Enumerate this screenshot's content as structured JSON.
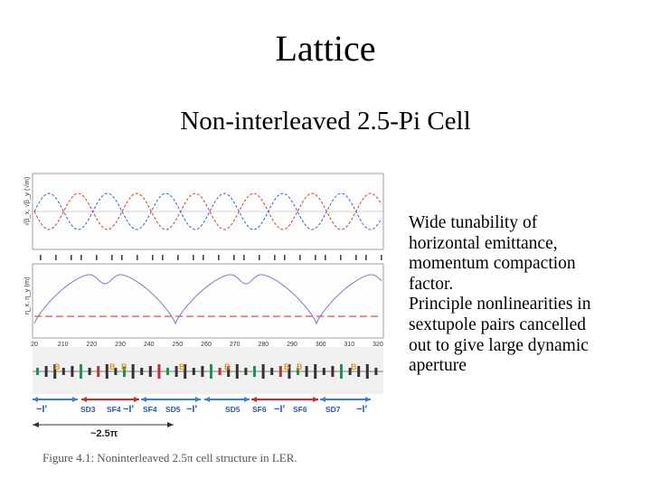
{
  "slide": {
    "title": "Lattice",
    "subtitle": "Non-interleaved 2.5-Pi Cell",
    "bullets": [
      "Wide tunability of",
      "horizontal emittance,",
      "momentum compaction",
      "factor.",
      "Principle nonlinearities in",
      "sextupole pairs cancelled",
      "out to give large dynamic",
      "aperture"
    ]
  },
  "figure": {
    "top_ylabel": "√β_x, √β_y (√m)",
    "bottom_ylabel": "η_x, η_y (m)",
    "x_ticks": [
      "20",
      "210",
      "220",
      "230",
      "240",
      "250",
      "260",
      "270",
      "280",
      "290",
      "300",
      "310",
      "320"
    ],
    "b_marker": "B",
    "element_labels": [
      "−I′",
      "SD3",
      "SF4",
      "−I′",
      "SF4",
      "SD5",
      "−I′",
      "SD5",
      "SF6",
      "−I′",
      "SF6",
      "SD7",
      "−I′"
    ],
    "period_label": "~2.5π",
    "caption": "Figure 4.1: Noninterleaved 2.5π cell structure in LER.",
    "colors": {
      "beta_x": "#d43a3a",
      "beta_y": "#3a5fd4",
      "dispersion": "#7a7fc0",
      "dispersion_y": "#c22a2a",
      "arrow_blue": "#3a7fd6",
      "arrow_red": "#cc2b2b",
      "b_marker": "#e8941a"
    }
  }
}
